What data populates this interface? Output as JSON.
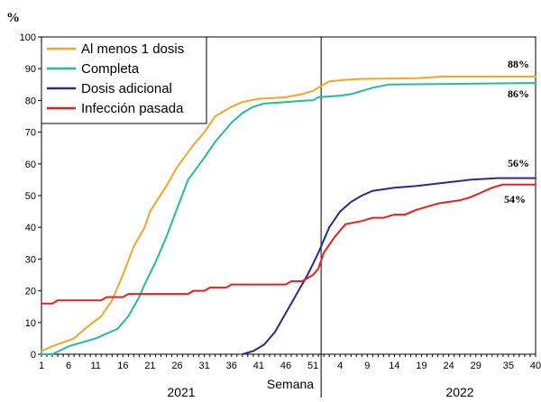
{
  "chart_data": {
    "type": "line",
    "unit_label": "%",
    "xlabel": "Semana",
    "ylim": [
      0,
      100
    ],
    "y_ticks": [
      0,
      10,
      20,
      30,
      40,
      50,
      60,
      70,
      80,
      90,
      100
    ],
    "x_tick_labels": [
      "1",
      "6",
      "11",
      "16",
      "21",
      "26",
      "31",
      "36",
      "41",
      "46",
      "51",
      "4",
      "9",
      "14",
      "19",
      "24",
      "29",
      "35",
      "40"
    ],
    "year_labels": [
      "2021",
      "2022"
    ],
    "legend_position": "top-left",
    "grid": false,
    "series": [
      {
        "name": "Al menos 1 dosis",
        "color": "#f5a623",
        "end_label": "88%",
        "points": [
          [
            1,
            1
          ],
          [
            3,
            2.5
          ],
          [
            7,
            5
          ],
          [
            9,
            8
          ],
          [
            12,
            12
          ],
          [
            14,
            17
          ],
          [
            16,
            25
          ],
          [
            18,
            34
          ],
          [
            20,
            40
          ],
          [
            21,
            45
          ],
          [
            24,
            53
          ],
          [
            26,
            59
          ],
          [
            29,
            66
          ],
          [
            31,
            70
          ],
          [
            33,
            75
          ],
          [
            36,
            78
          ],
          [
            38,
            79.5
          ],
          [
            41,
            80.5
          ],
          [
            46,
            81
          ],
          [
            49,
            82
          ],
          [
            51,
            83
          ],
          [
            52,
            84
          ],
          [
            54,
            86
          ],
          [
            57,
            86.5
          ],
          [
            60,
            86.8
          ],
          [
            70,
            87
          ],
          [
            75,
            87.5
          ],
          [
            92,
            87.5
          ]
        ]
      },
      {
        "name": "Completa",
        "color": "#1fbf9a",
        "end_label": "86%",
        "points": [
          [
            1,
            0
          ],
          [
            3,
            0
          ],
          [
            6,
            2.5
          ],
          [
            9,
            4
          ],
          [
            11,
            5
          ],
          [
            13,
            6.5
          ],
          [
            15,
            8
          ],
          [
            17,
            12
          ],
          [
            19,
            18
          ],
          [
            20,
            22
          ],
          [
            22,
            29
          ],
          [
            24,
            37
          ],
          [
            26,
            46
          ],
          [
            28,
            55
          ],
          [
            31,
            62
          ],
          [
            33,
            67
          ],
          [
            36,
            73
          ],
          [
            38,
            76
          ],
          [
            40,
            78
          ],
          [
            42,
            79
          ],
          [
            46,
            79.5
          ],
          [
            50,
            80
          ],
          [
            51,
            80
          ],
          [
            52,
            81
          ],
          [
            56,
            81.5
          ],
          [
            58,
            82
          ],
          [
            62,
            84
          ],
          [
            65,
            85
          ],
          [
            92,
            85.5
          ]
        ]
      },
      {
        "name": "Dosis adicional",
        "color": "#2b2b8f",
        "end_label": "56%",
        "points": [
          [
            38,
            0
          ],
          [
            40,
            1
          ],
          [
            42,
            3
          ],
          [
            44,
            7
          ],
          [
            46,
            13
          ],
          [
            48,
            19
          ],
          [
            50,
            25
          ],
          [
            52,
            32
          ],
          [
            53,
            36
          ],
          [
            54,
            40
          ],
          [
            56,
            45
          ],
          [
            58,
            48
          ],
          [
            60,
            50
          ],
          [
            62,
            51.5
          ],
          [
            66,
            52.5
          ],
          [
            70,
            53
          ],
          [
            75,
            54
          ],
          [
            80,
            55
          ],
          [
            85,
            55.5
          ],
          [
            92,
            55.5
          ]
        ]
      },
      {
        "name": "Infección pasada",
        "color": "#ee1c1c",
        "end_label": "54%",
        "points": [
          [
            1,
            16
          ],
          [
            3,
            16
          ],
          [
            4,
            17
          ],
          [
            12,
            17
          ],
          [
            13,
            18
          ],
          [
            16,
            18
          ],
          [
            17,
            19
          ],
          [
            28,
            19
          ],
          [
            29,
            20
          ],
          [
            31,
            20
          ],
          [
            32,
            21
          ],
          [
            35,
            21
          ],
          [
            36,
            22
          ],
          [
            46,
            22
          ],
          [
            47,
            23
          ],
          [
            49,
            23
          ],
          [
            51,
            25
          ],
          [
            52,
            27
          ],
          [
            53,
            32
          ],
          [
            55,
            37
          ],
          [
            57,
            41
          ],
          [
            60,
            42
          ],
          [
            62,
            43
          ],
          [
            64,
            43
          ],
          [
            66,
            44
          ],
          [
            68,
            44
          ],
          [
            70,
            45.5
          ],
          [
            72,
            46.5
          ],
          [
            74,
            47.5
          ],
          [
            76,
            48
          ],
          [
            78,
            48.5
          ],
          [
            80,
            49.5
          ],
          [
            82,
            51
          ],
          [
            84,
            52.5
          ],
          [
            86,
            53.5
          ],
          [
            92,
            53.5
          ]
        ]
      }
    ]
  }
}
